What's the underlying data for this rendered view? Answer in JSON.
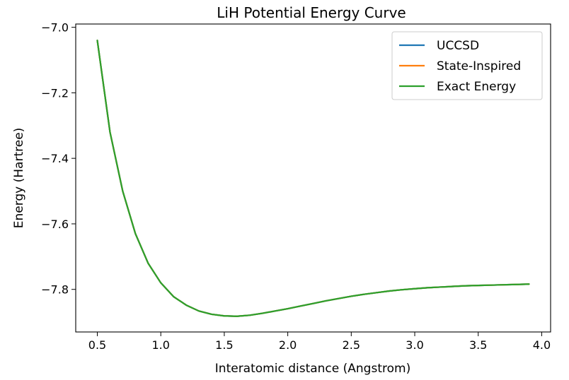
{
  "chart_data": {
    "type": "line",
    "title": "LiH Potential Energy Curve",
    "xlabel": "Interatomic distance (Angstrom)",
    "ylabel": "Energy (Hartree)",
    "xlim": [
      0.33,
      4.07
    ],
    "ylim": [
      -7.93,
      -6.99
    ],
    "xticks": [
      0.5,
      1.0,
      1.5,
      2.0,
      2.5,
      3.0,
      3.5,
      4.0
    ],
    "xtick_labels": [
      "0.5",
      "1.0",
      "1.5",
      "2.0",
      "2.5",
      "3.0",
      "3.5",
      "4.0"
    ],
    "yticks": [
      -7.0,
      -7.2,
      -7.4,
      -7.6,
      -7.8
    ],
    "ytick_labels": [
      "−7.0",
      "−7.2",
      "−7.4",
      "−7.6",
      "−7.8"
    ],
    "grid": false,
    "legend_position": "top-right",
    "x": [
      0.5,
      0.6,
      0.7,
      0.8,
      0.9,
      1.0,
      1.1,
      1.2,
      1.3,
      1.4,
      1.5,
      1.6,
      1.7,
      1.8,
      1.9,
      2.0,
      2.1,
      2.2,
      2.3,
      2.4,
      2.5,
      2.6,
      2.7,
      2.8,
      2.9,
      3.0,
      3.1,
      3.2,
      3.3,
      3.4,
      3.5,
      3.6,
      3.7,
      3.8,
      3.9
    ],
    "series": [
      {
        "name": "UCCSD",
        "color": "#1f77b4",
        "values": [
          -7.04,
          -7.32,
          -7.5,
          -7.63,
          -7.72,
          -7.78,
          -7.822,
          -7.848,
          -7.866,
          -7.876,
          -7.881,
          -7.882,
          -7.879,
          -7.873,
          -7.866,
          -7.859,
          -7.851,
          -7.843,
          -7.835,
          -7.828,
          -7.821,
          -7.815,
          -7.81,
          -7.805,
          -7.801,
          -7.798,
          -7.795,
          -7.793,
          -7.791,
          -7.789,
          -7.788,
          -7.787,
          -7.786,
          -7.785,
          -7.784
        ]
      },
      {
        "name": "State-Inspired",
        "color": "#ff7f0e",
        "values": [
          -7.04,
          -7.32,
          -7.5,
          -7.63,
          -7.72,
          -7.78,
          -7.822,
          -7.848,
          -7.866,
          -7.876,
          -7.881,
          -7.882,
          -7.879,
          -7.873,
          -7.866,
          -7.859,
          -7.851,
          -7.843,
          -7.835,
          -7.828,
          -7.821,
          -7.815,
          -7.81,
          -7.805,
          -7.801,
          -7.798,
          -7.795,
          -7.793,
          -7.791,
          -7.789,
          -7.788,
          -7.787,
          -7.786,
          -7.785,
          -7.784
        ]
      },
      {
        "name": "Exact Energy",
        "color": "#2ca02c",
        "values": [
          -7.04,
          -7.32,
          -7.5,
          -7.63,
          -7.72,
          -7.78,
          -7.822,
          -7.848,
          -7.866,
          -7.876,
          -7.881,
          -7.882,
          -7.879,
          -7.873,
          -7.866,
          -7.859,
          -7.851,
          -7.843,
          -7.835,
          -7.828,
          -7.821,
          -7.815,
          -7.81,
          -7.805,
          -7.801,
          -7.798,
          -7.795,
          -7.793,
          -7.791,
          -7.789,
          -7.788,
          -7.787,
          -7.786,
          -7.785,
          -7.784
        ]
      }
    ]
  }
}
